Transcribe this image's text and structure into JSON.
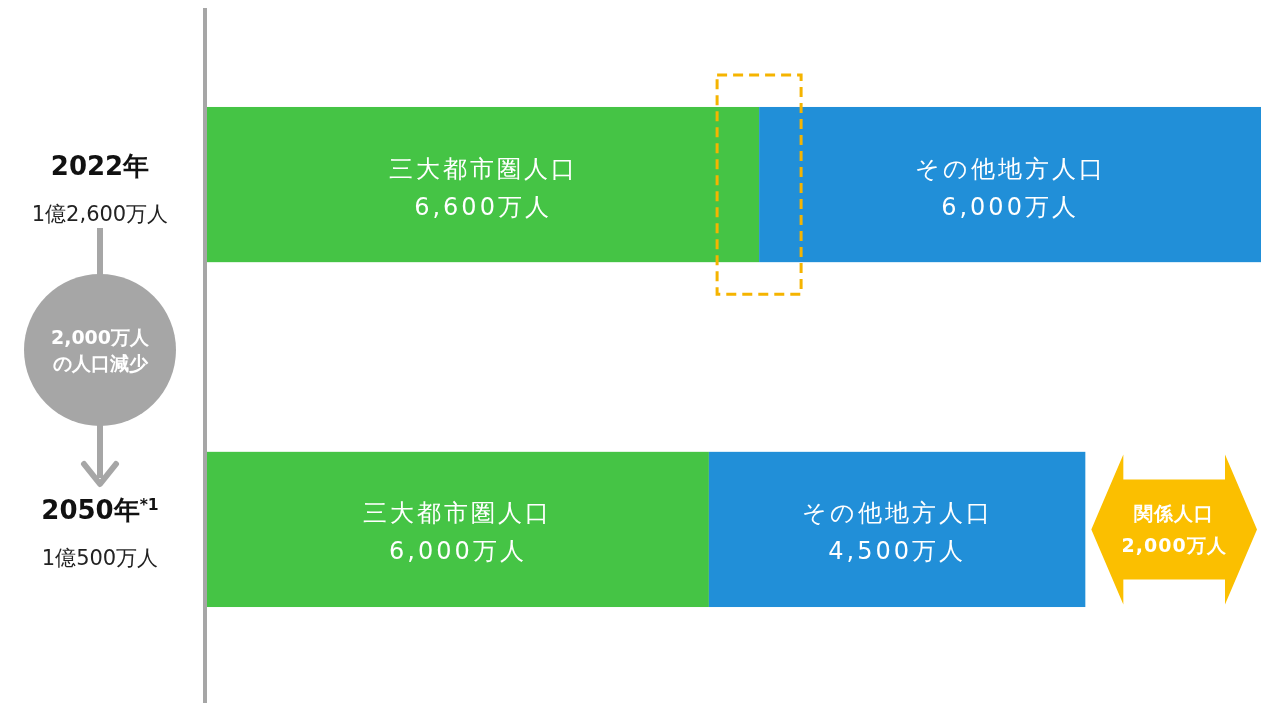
{
  "chart_data": {
    "type": "bar",
    "orientation": "horizontal",
    "stacked": true,
    "categories": [
      "2022年",
      "2050年$^{*1}$"
    ],
    "totals": [
      "1億2,600万人",
      "1億500万人"
    ],
    "series": [
      {
        "name": "三大都市圏人口",
        "color": "#45c445",
        "values": [
          6600,
          6000
        ],
        "value_labels": [
          "6,600万人",
          "6,000万人"
        ]
      },
      {
        "name": "その他地方人口",
        "color": "#218fd8",
        "values": [
          6000,
          4500
        ],
        "value_labels": [
          "6,000万人",
          "4,500万人"
        ]
      }
    ],
    "annotations": [
      "2,000万人",
      "の人口減少",
      "関係人口",
      "2,000万人"
    ]
  }
}
